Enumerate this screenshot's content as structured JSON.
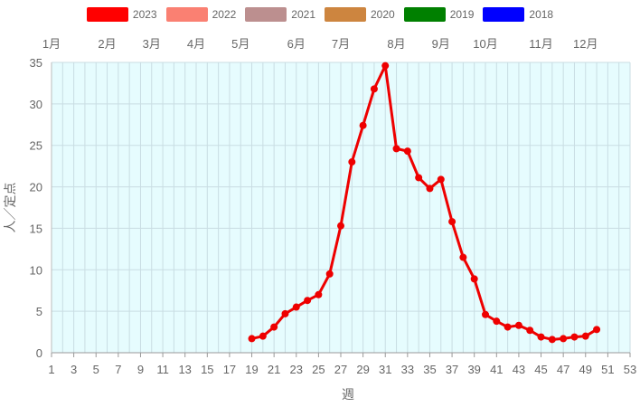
{
  "chart_data": {
    "type": "line",
    "legend": [
      {
        "name": "2023",
        "color": "#ff0000"
      },
      {
        "name": "2022",
        "color": "#fa8072"
      },
      {
        "name": "2021",
        "color": "#bc8f8f"
      },
      {
        "name": "2020",
        "color": "#cd853f"
      },
      {
        "name": "2019",
        "color": "#008000"
      },
      {
        "name": "2018",
        "color": "#0000ff"
      }
    ],
    "legend_position": "top",
    "xlabel": "週",
    "ylabel": "人／定点",
    "xlim": [
      1,
      53
    ],
    "ylim": [
      0,
      35
    ],
    "x_ticks": [
      1,
      3,
      5,
      7,
      9,
      11,
      13,
      15,
      17,
      19,
      21,
      23,
      25,
      27,
      29,
      31,
      33,
      35,
      37,
      39,
      41,
      43,
      45,
      47,
      49,
      51,
      53
    ],
    "y_ticks": [
      0,
      5,
      10,
      15,
      20,
      25,
      30,
      35
    ],
    "month_labels": [
      {
        "label": "1月",
        "week": 1
      },
      {
        "label": "2月",
        "week": 6
      },
      {
        "label": "3月",
        "week": 10
      },
      {
        "label": "4月",
        "week": 14
      },
      {
        "label": "5月",
        "week": 18
      },
      {
        "label": "6月",
        "week": 23
      },
      {
        "label": "7月",
        "week": 27
      },
      {
        "label": "8月",
        "week": 32
      },
      {
        "label": "9月",
        "week": 36
      },
      {
        "label": "10月",
        "week": 40
      },
      {
        "label": "11月",
        "week": 45
      },
      {
        "label": "12月",
        "week": 49
      }
    ],
    "grid": true,
    "background_color": "#e6fcfe",
    "series": [
      {
        "name": "2023",
        "color": "#ee0000",
        "x": [
          19,
          20,
          21,
          22,
          23,
          24,
          25,
          26,
          27,
          28,
          29,
          30,
          31,
          32,
          33,
          34,
          35,
          36,
          37,
          38,
          39,
          40,
          41,
          42,
          43,
          44,
          45,
          46,
          47,
          48,
          49,
          50
        ],
        "y": [
          1.7,
          2.0,
          3.1,
          4.7,
          5.5,
          6.3,
          7.0,
          9.5,
          15.3,
          23.0,
          27.4,
          31.8,
          34.6,
          24.6,
          24.3,
          21.1,
          19.8,
          20.9,
          15.8,
          11.5,
          8.9,
          4.6,
          3.8,
          3.1,
          3.3,
          2.7,
          1.9,
          1.6,
          1.7,
          1.9,
          2.0,
          2.8
        ]
      }
    ]
  }
}
